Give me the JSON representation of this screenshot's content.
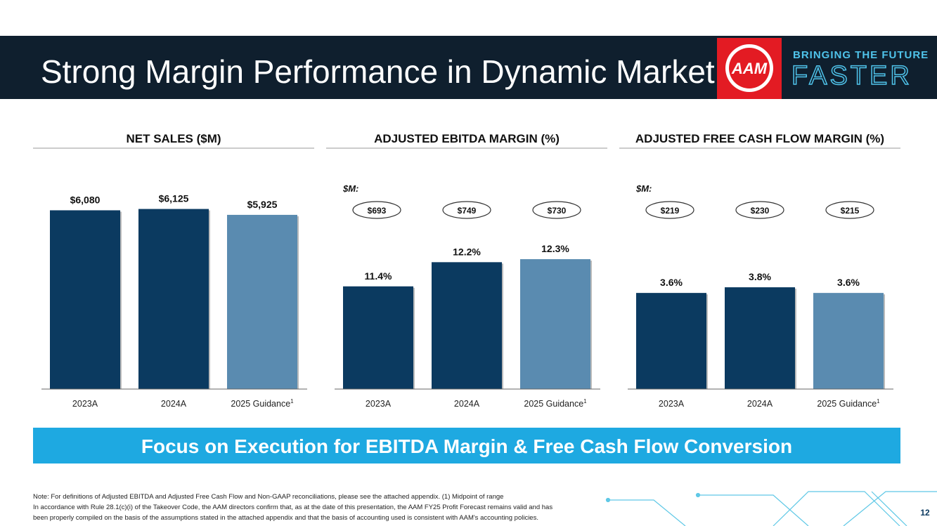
{
  "header": {
    "title": "Strong Margin Performance in Dynamic Market",
    "logo": "AAM",
    "tagline_top": "BRINGING THE FUTURE",
    "tagline_bottom": "FASTER"
  },
  "chart_data": [
    {
      "type": "bar",
      "title": "NET SALES ($M)",
      "categories": [
        "2023A",
        "2024A",
        "2025 Guidance"
      ],
      "category_notes": [
        null,
        null,
        "1"
      ],
      "values": [
        6080,
        6125,
        5925
      ],
      "value_labels": [
        "$6,080",
        "$6,125",
        "$5,925"
      ],
      "colors": [
        "#0b3a60",
        "#0b3a60",
        "#5a8bb0"
      ],
      "ylim": [
        0,
        7500
      ]
    },
    {
      "type": "bar",
      "title": "ADJUSTED EBITDA MARGIN (%)",
      "categories": [
        "2023A",
        "2024A",
        "2025 Guidance"
      ],
      "category_notes": [
        null,
        null,
        "1"
      ],
      "values": [
        11.4,
        12.2,
        12.3
      ],
      "value_labels": [
        "11.4%",
        "12.2%",
        "12.3%"
      ],
      "secondary_label": "$M:",
      "secondary_values": [
        693,
        749,
        730
      ],
      "secondary_value_labels": [
        "$693",
        "$749",
        "$730"
      ],
      "colors": [
        "#0b3a60",
        "#0b3a60",
        "#5a8bb0"
      ],
      "ylim": [
        8,
        15.3
      ]
    },
    {
      "type": "bar",
      "title": "ADJUSTED FREE CASH FLOW MARGIN (%)",
      "categories": [
        "2023A",
        "2024A",
        "2025 Guidance"
      ],
      "category_notes": [
        null,
        null,
        "1"
      ],
      "values": [
        3.6,
        3.8,
        3.6
      ],
      "value_labels": [
        "3.6%",
        "3.8%",
        "3.6%"
      ],
      "secondary_label": "$M:",
      "secondary_values": [
        219,
        230,
        215
      ],
      "secondary_value_labels": [
        "$219",
        "$230",
        "$215"
      ],
      "colors": [
        "#0b3a60",
        "#0b3a60",
        "#5a8bb0"
      ],
      "ylim": [
        0.2,
        8
      ]
    }
  ],
  "banner": "Focus on Execution for EBITDA Margin & Free Cash Flow Conversion",
  "footnotes": [
    "Note: For definitions of Adjusted EBITDA and Adjusted Free Cash Flow and Non-GAAP reconciliations, please see the attached appendix. (1) Midpoint of range",
    "In accordance with Rule 28.1(c)(i) of the Takeover Code, the AAM directors confirm that, as at the date of this presentation, the AAM FY25 Profit Forecast remains valid and has",
    "been properly compiled on the basis of the assumptions stated in the attached appendix and that the basis of accounting used is consistent with AAM's accounting policies."
  ],
  "page_number": "12"
}
